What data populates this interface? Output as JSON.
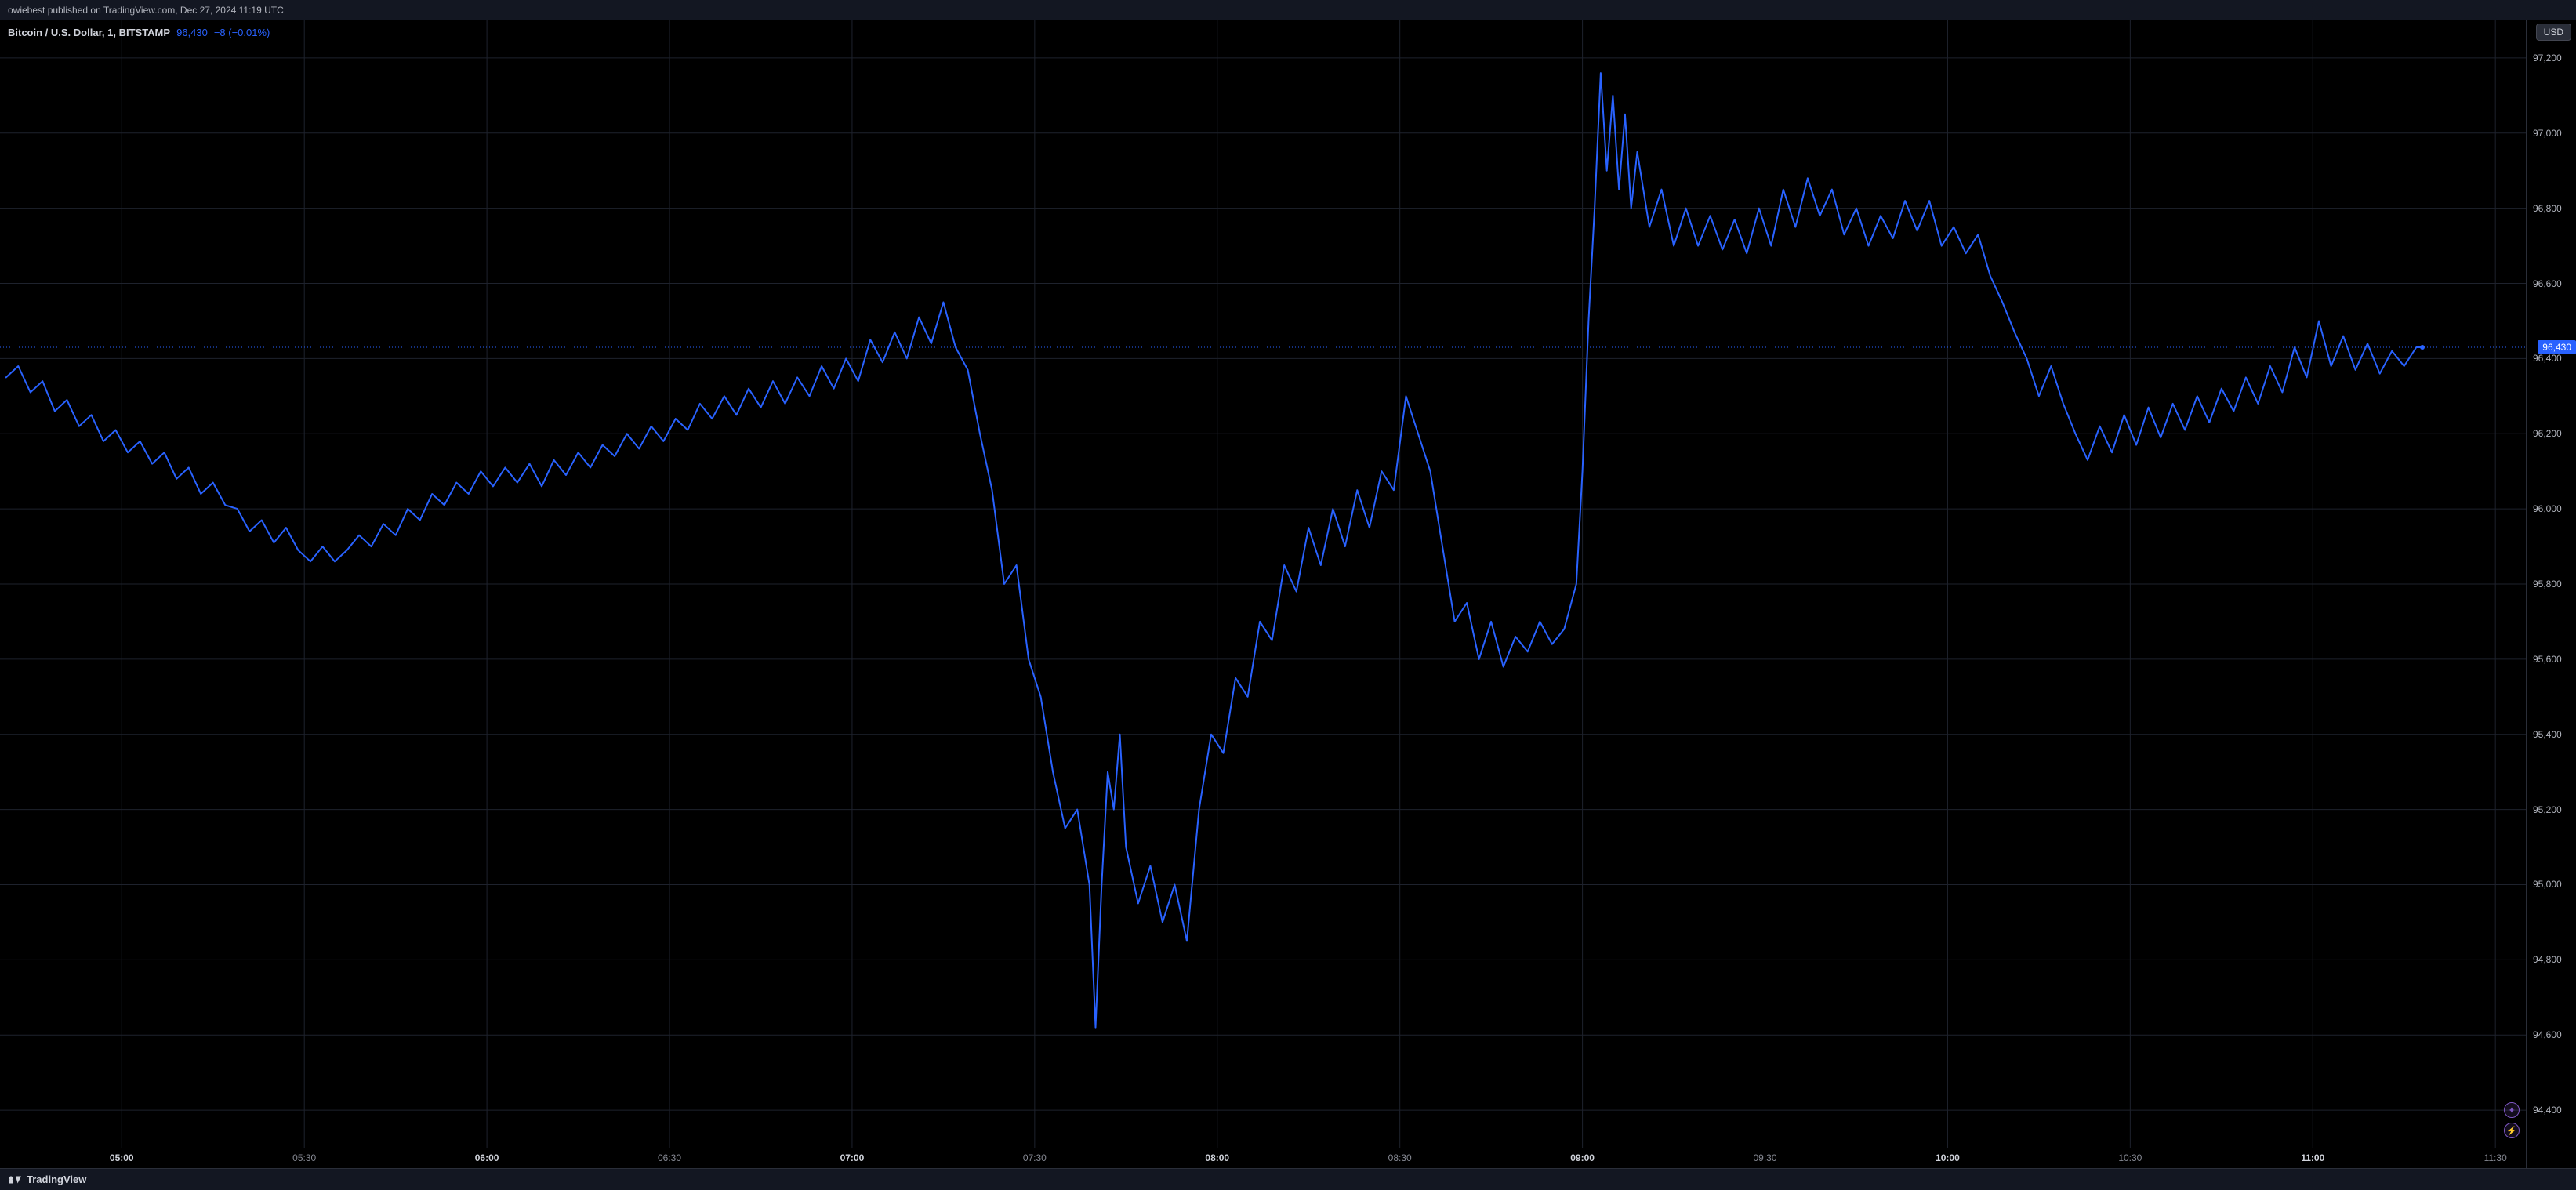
{
  "topbar": {
    "publish_text": "owiebest published on TradingView.com, Dec 27, 2024 11:19 UTC"
  },
  "legend": {
    "title": "Bitcoin / U.S. Dollar, 1, BITSTAMP",
    "price": "96,430",
    "change": "−8 (−0.01%)"
  },
  "currency_button": {
    "label": "USD"
  },
  "bottombar": {
    "brand": "TradingView"
  },
  "chart": {
    "type": "line",
    "line_color": "#2962ff",
    "line_width": 2,
    "background_color": "#000000",
    "grid_color": "#1e222d",
    "axis_text_color": "#868993",
    "axis_text_color_bold": "#d1d4dc",
    "last_price_line_color": "#2962ff",
    "last_price_line_dash": "1 3",
    "y": {
      "min": 94300,
      "max": 97300,
      "tick_start": 94400,
      "tick_step": 200,
      "tick_end": 97200,
      "last_price": 96430,
      "last_price_label": "96,430"
    },
    "x": {
      "min": 280,
      "max": 695,
      "ticks": [
        {
          "v": 300,
          "label": "05:00",
          "bold": true
        },
        {
          "v": 330,
          "label": "05:30",
          "bold": false
        },
        {
          "v": 360,
          "label": "06:00",
          "bold": true
        },
        {
          "v": 390,
          "label": "06:30",
          "bold": false
        },
        {
          "v": 420,
          "label": "07:00",
          "bold": true
        },
        {
          "v": 450,
          "label": "07:30",
          "bold": false
        },
        {
          "v": 480,
          "label": "08:00",
          "bold": true
        },
        {
          "v": 510,
          "label": "08:30",
          "bold": false
        },
        {
          "v": 540,
          "label": "09:00",
          "bold": true
        },
        {
          "v": 570,
          "label": "09:30",
          "bold": false
        },
        {
          "v": 600,
          "label": "10:00",
          "bold": true
        },
        {
          "v": 630,
          "label": "10:30",
          "bold": false
        },
        {
          "v": 660,
          "label": "11:00",
          "bold": true
        },
        {
          "v": 690,
          "label": "11:30",
          "bold": false
        }
      ]
    },
    "series": [
      [
        281,
        96350
      ],
      [
        283,
        96380
      ],
      [
        285,
        96310
      ],
      [
        287,
        96340
      ],
      [
        289,
        96260
      ],
      [
        291,
        96290
      ],
      [
        293,
        96220
      ],
      [
        295,
        96250
      ],
      [
        297,
        96180
      ],
      [
        299,
        96210
      ],
      [
        301,
        96150
      ],
      [
        303,
        96180
      ],
      [
        305,
        96120
      ],
      [
        307,
        96150
      ],
      [
        309,
        96080
      ],
      [
        311,
        96110
      ],
      [
        313,
        96040
      ],
      [
        315,
        96070
      ],
      [
        317,
        96010
      ],
      [
        319,
        96000
      ],
      [
        321,
        95940
      ],
      [
        323,
        95970
      ],
      [
        325,
        95910
      ],
      [
        327,
        95950
      ],
      [
        329,
        95890
      ],
      [
        331,
        95860
      ],
      [
        333,
        95900
      ],
      [
        335,
        95860
      ],
      [
        337,
        95890
      ],
      [
        339,
        95930
      ],
      [
        341,
        95900
      ],
      [
        343,
        95960
      ],
      [
        345,
        95930
      ],
      [
        347,
        96000
      ],
      [
        349,
        95970
      ],
      [
        351,
        96040
      ],
      [
        353,
        96010
      ],
      [
        355,
        96070
      ],
      [
        357,
        96040
      ],
      [
        359,
        96100
      ],
      [
        361,
        96060
      ],
      [
        363,
        96110
      ],
      [
        365,
        96070
      ],
      [
        367,
        96120
      ],
      [
        369,
        96060
      ],
      [
        371,
        96130
      ],
      [
        373,
        96090
      ],
      [
        375,
        96150
      ],
      [
        377,
        96110
      ],
      [
        379,
        96170
      ],
      [
        381,
        96140
      ],
      [
        383,
        96200
      ],
      [
        385,
        96160
      ],
      [
        387,
        96220
      ],
      [
        389,
        96180
      ],
      [
        391,
        96240
      ],
      [
        393,
        96210
      ],
      [
        395,
        96280
      ],
      [
        397,
        96240
      ],
      [
        399,
        96300
      ],
      [
        401,
        96250
      ],
      [
        403,
        96320
      ],
      [
        405,
        96270
      ],
      [
        407,
        96340
      ],
      [
        409,
        96280
      ],
      [
        411,
        96350
      ],
      [
        413,
        96300
      ],
      [
        415,
        96380
      ],
      [
        417,
        96320
      ],
      [
        419,
        96400
      ],
      [
        421,
        96340
      ],
      [
        423,
        96450
      ],
      [
        425,
        96390
      ],
      [
        427,
        96470
      ],
      [
        429,
        96400
      ],
      [
        431,
        96510
      ],
      [
        433,
        96440
      ],
      [
        435,
        96550
      ],
      [
        437,
        96430
      ],
      [
        439,
        96370
      ],
      [
        441,
        96200
      ],
      [
        443,
        96050
      ],
      [
        445,
        95800
      ],
      [
        447,
        95850
      ],
      [
        449,
        95600
      ],
      [
        451,
        95500
      ],
      [
        453,
        95300
      ],
      [
        455,
        95150
      ],
      [
        457,
        95200
      ],
      [
        459,
        95000
      ],
      [
        460,
        94620
      ],
      [
        461,
        95000
      ],
      [
        462,
        95300
      ],
      [
        463,
        95200
      ],
      [
        464,
        95400
      ],
      [
        465,
        95100
      ],
      [
        467,
        94950
      ],
      [
        469,
        95050
      ],
      [
        471,
        94900
      ],
      [
        473,
        95000
      ],
      [
        475,
        94850
      ],
      [
        477,
        95200
      ],
      [
        479,
        95400
      ],
      [
        481,
        95350
      ],
      [
        483,
        95550
      ],
      [
        485,
        95500
      ],
      [
        487,
        95700
      ],
      [
        489,
        95650
      ],
      [
        491,
        95850
      ],
      [
        493,
        95780
      ],
      [
        495,
        95950
      ],
      [
        497,
        95850
      ],
      [
        499,
        96000
      ],
      [
        501,
        95900
      ],
      [
        503,
        96050
      ],
      [
        505,
        95950
      ],
      [
        507,
        96100
      ],
      [
        509,
        96050
      ],
      [
        511,
        96300
      ],
      [
        513,
        96200
      ],
      [
        515,
        96100
      ],
      [
        517,
        95900
      ],
      [
        519,
        95700
      ],
      [
        521,
        95750
      ],
      [
        523,
        95600
      ],
      [
        525,
        95700
      ],
      [
        527,
        95580
      ],
      [
        529,
        95660
      ],
      [
        531,
        95620
      ],
      [
        533,
        95700
      ],
      [
        535,
        95640
      ],
      [
        537,
        95680
      ],
      [
        539,
        95800
      ],
      [
        540,
        96100
      ],
      [
        541,
        96500
      ],
      [
        542,
        96800
      ],
      [
        543,
        97160
      ],
      [
        544,
        96900
      ],
      [
        545,
        97100
      ],
      [
        546,
        96850
      ],
      [
        547,
        97050
      ],
      [
        548,
        96800
      ],
      [
        549,
        96950
      ],
      [
        551,
        96750
      ],
      [
        553,
        96850
      ],
      [
        555,
        96700
      ],
      [
        557,
        96800
      ],
      [
        559,
        96700
      ],
      [
        561,
        96780
      ],
      [
        563,
        96690
      ],
      [
        565,
        96770
      ],
      [
        567,
        96680
      ],
      [
        569,
        96800
      ],
      [
        571,
        96700
      ],
      [
        573,
        96850
      ],
      [
        575,
        96750
      ],
      [
        577,
        96880
      ],
      [
        579,
        96780
      ],
      [
        581,
        96850
      ],
      [
        583,
        96730
      ],
      [
        585,
        96800
      ],
      [
        587,
        96700
      ],
      [
        589,
        96780
      ],
      [
        591,
        96720
      ],
      [
        593,
        96820
      ],
      [
        595,
        96740
      ],
      [
        597,
        96820
      ],
      [
        599,
        96700
      ],
      [
        601,
        96750
      ],
      [
        603,
        96680
      ],
      [
        605,
        96730
      ],
      [
        607,
        96620
      ],
      [
        609,
        96550
      ],
      [
        611,
        96470
      ],
      [
        613,
        96400
      ],
      [
        615,
        96300
      ],
      [
        617,
        96380
      ],
      [
        619,
        96280
      ],
      [
        621,
        96200
      ],
      [
        623,
        96130
      ],
      [
        625,
        96220
      ],
      [
        627,
        96150
      ],
      [
        629,
        96250
      ],
      [
        631,
        96170
      ],
      [
        633,
        96270
      ],
      [
        635,
        96190
      ],
      [
        637,
        96280
      ],
      [
        639,
        96210
      ],
      [
        641,
        96300
      ],
      [
        643,
        96230
      ],
      [
        645,
        96320
      ],
      [
        647,
        96260
      ],
      [
        649,
        96350
      ],
      [
        651,
        96280
      ],
      [
        653,
        96380
      ],
      [
        655,
        96310
      ],
      [
        657,
        96430
      ],
      [
        659,
        96350
      ],
      [
        661,
        96500
      ],
      [
        663,
        96380
      ],
      [
        665,
        96460
      ],
      [
        667,
        96370
      ],
      [
        669,
        96440
      ],
      [
        671,
        96360
      ],
      [
        673,
        96420
      ],
      [
        675,
        96380
      ],
      [
        677,
        96430
      ],
      [
        678,
        96430
      ]
    ]
  },
  "icons": {
    "plus_glyph": "✦",
    "bolt_glyph": "⚡"
  }
}
